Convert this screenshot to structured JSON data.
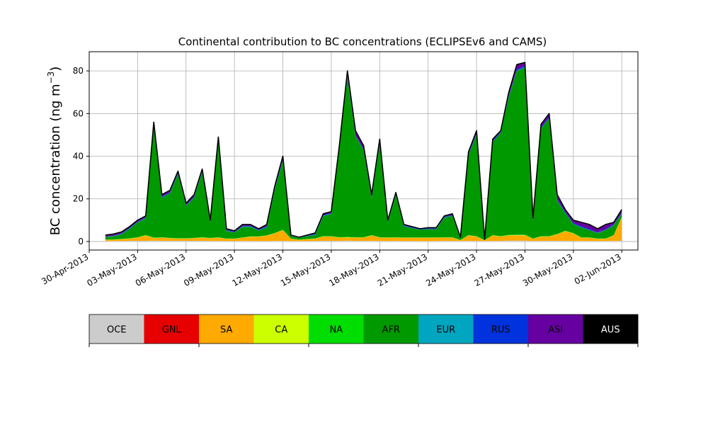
{
  "chart_data": {
    "type": "area",
    "stacked": true,
    "title": "Continental contribution to BC concentrations (ECLIPSEv6 and CAMS)",
    "ylabel_main": "BC concentration (ng m",
    "ylabel_sup": "−3",
    "ylabel_close": ")",
    "xlabel": "",
    "ylim": [
      -4,
      89
    ],
    "grid": true,
    "x_axis": {
      "type": "date",
      "min": "2013-04-30",
      "max": "2013-06-03",
      "tick_labels": [
        "30-Apr-2013",
        "03-May-2013",
        "06-May-2013",
        "09-May-2013",
        "12-May-2013",
        "15-May-2013",
        "18-May-2013",
        "21-May-2013",
        "24-May-2013",
        "27-May-2013",
        "30-May-2013",
        "02-Jun-2013"
      ],
      "tick_days": [
        0,
        3,
        6,
        9,
        12,
        15,
        18,
        21,
        24,
        27,
        30,
        33
      ]
    },
    "y_axis": {
      "ticks": [
        0,
        20,
        40,
        60,
        80
      ],
      "tick_labels": [
        "0",
        "20",
        "40",
        "60",
        "80"
      ]
    },
    "x": [
      "2013-05-01 00:00",
      "2013-05-01 12:00",
      "2013-05-02 00:00",
      "2013-05-02 12:00",
      "2013-05-03 00:00",
      "2013-05-03 12:00",
      "2013-05-04 00:00",
      "2013-05-04 12:00",
      "2013-05-05 00:00",
      "2013-05-05 12:00",
      "2013-05-06 00:00",
      "2013-05-06 12:00",
      "2013-05-07 00:00",
      "2013-05-07 12:00",
      "2013-05-08 00:00",
      "2013-05-08 12:00",
      "2013-05-09 00:00",
      "2013-05-09 12:00",
      "2013-05-10 00:00",
      "2013-05-10 12:00",
      "2013-05-11 00:00",
      "2013-05-11 12:00",
      "2013-05-12 00:00",
      "2013-05-12 12:00",
      "2013-05-13 00:00",
      "2013-05-13 12:00",
      "2013-05-14 00:00",
      "2013-05-14 12:00",
      "2013-05-15 00:00",
      "2013-05-15 12:00",
      "2013-05-16 00:00",
      "2013-05-16 12:00",
      "2013-05-17 00:00",
      "2013-05-17 12:00",
      "2013-05-18 00:00",
      "2013-05-18 12:00",
      "2013-05-19 00:00",
      "2013-05-19 12:00",
      "2013-05-20 00:00",
      "2013-05-20 12:00",
      "2013-05-21 00:00",
      "2013-05-21 12:00",
      "2013-05-22 00:00",
      "2013-05-22 12:00",
      "2013-05-23 00:00",
      "2013-05-23 12:00",
      "2013-05-24 00:00",
      "2013-05-24 12:00",
      "2013-05-25 00:00",
      "2013-05-25 12:00",
      "2013-05-26 00:00",
      "2013-05-26 12:00",
      "2013-05-27 00:00",
      "2013-05-27 12:00",
      "2013-05-28 00:00",
      "2013-05-28 12:00",
      "2013-05-29 00:00",
      "2013-05-29 12:00",
      "2013-05-30 00:00",
      "2013-05-30 12:00",
      "2013-05-31 00:00",
      "2013-05-31 12:00",
      "2013-06-01 00:00",
      "2013-06-01 12:00",
      "2013-06-02 00:00"
    ],
    "total": [
      3.0,
      3.5,
      4.5,
      7.0,
      10.0,
      12.0,
      56.0,
      22.0,
      24.0,
      33.0,
      18.0,
      22.0,
      34.0,
      10.0,
      49.0,
      6.0,
      5.0,
      8.0,
      8.0,
      6.0,
      8.0,
      26.0,
      40.0,
      3.0,
      2.0,
      3.0,
      4.0,
      13.0,
      14.0,
      45.0,
      80.0,
      52.0,
      45.0,
      22.0,
      48.0,
      10.0,
      23.0,
      8.0,
      7.0,
      6.0,
      6.5,
      6.5,
      12.0,
      13.0,
      2.0,
      42.0,
      52.0,
      1.0,
      48.0,
      52.0,
      70.0,
      83.0,
      84.0,
      11.0,
      55.0,
      60.0,
      22.0,
      15.0,
      10.0,
      9.0,
      8.0,
      6.0,
      8.0,
      9.0,
      15.0
    ],
    "series": [
      {
        "name": "OCE",
        "color": "#cccccc",
        "values": [
          0.2,
          0.2,
          0.2,
          0.3,
          0.3,
          0.3,
          0.4,
          0.3,
          0.3,
          0.3,
          0.3,
          0.3,
          0.3,
          0.2,
          0.3,
          0.2,
          0.2,
          0.2,
          0.2,
          0.2,
          0.2,
          0.3,
          0.3,
          0.2,
          0.2,
          0.2,
          0.2,
          0.3,
          0.3,
          0.3,
          0.4,
          0.3,
          0.3,
          0.3,
          0.3,
          0.2,
          0.3,
          0.2,
          0.2,
          0.2,
          0.2,
          0.2,
          0.3,
          0.3,
          0.2,
          0.3,
          0.3,
          0.2,
          0.3,
          0.3,
          0.4,
          0.4,
          0.4,
          0.2,
          0.3,
          0.3,
          0.3,
          0.3,
          0.2,
          0.2,
          0.2,
          0.2,
          0.2,
          0.2,
          0.3
        ]
      },
      {
        "name": "GNL",
        "color": "#e60000",
        "values": [
          0.0,
          0.0,
          0.0,
          0.0,
          0.0,
          0.0,
          0.0,
          0.0,
          0.0,
          0.0,
          0.0,
          0.0,
          0.0,
          0.0,
          0.0,
          0.0,
          0.0,
          0.0,
          0.0,
          0.0,
          0.0,
          0.0,
          0.0,
          0.0,
          0.0,
          0.0,
          0.0,
          0.0,
          0.0,
          0.0,
          0.0,
          0.0,
          0.0,
          0.0,
          0.0,
          0.0,
          0.0,
          0.0,
          0.0,
          0.0,
          0.0,
          0.0,
          0.0,
          0.0,
          0.0,
          0.0,
          0.0,
          0.0,
          0.0,
          0.0,
          0.0,
          0.0,
          0.0,
          0.0,
          0.0,
          0.0,
          0.0,
          0.0,
          0.0,
          0.0,
          0.0,
          0.0,
          0.0,
          0.0,
          0.0
        ]
      },
      {
        "name": "SA",
        "color": "#ffaa00",
        "values": [
          0.5,
          0.6,
          0.8,
          1.0,
          1.5,
          2.5,
          1.2,
          1.5,
          1.2,
          1.0,
          1.0,
          1.2,
          1.5,
          1.2,
          1.5,
          1.0,
          1.0,
          1.5,
          2.0,
          2.0,
          2.5,
          3.5,
          5.0,
          1.0,
          0.5,
          0.8,
          1.0,
          2.0,
          2.0,
          1.5,
          1.5,
          1.5,
          1.5,
          2.5,
          1.5,
          1.5,
          1.5,
          1.5,
          1.5,
          1.5,
          1.5,
          1.5,
          1.5,
          1.5,
          0.3,
          2.5,
          2.0,
          0.3,
          2.5,
          2.0,
          2.5,
          2.5,
          2.5,
          1.0,
          2.0,
          2.0,
          3.0,
          4.5,
          3.5,
          1.5,
          1.5,
          1.0,
          1.0,
          2.5,
          11.0
        ]
      },
      {
        "name": "CA",
        "color": "#ccff00",
        "values": [
          0.1,
          0.1,
          0.1,
          0.1,
          0.1,
          0.1,
          0.1,
          0.1,
          0.1,
          0.1,
          0.1,
          0.1,
          0.1,
          0.1,
          0.1,
          0.1,
          0.1,
          0.1,
          0.1,
          0.1,
          0.1,
          0.1,
          0.1,
          0.1,
          0.1,
          0.1,
          0.1,
          0.1,
          0.1,
          0.1,
          0.1,
          0.1,
          0.1,
          0.1,
          0.1,
          0.1,
          0.1,
          0.1,
          0.1,
          0.1,
          0.1,
          0.1,
          0.1,
          0.1,
          0.1,
          0.1,
          0.1,
          0.1,
          0.1,
          0.1,
          0.1,
          0.1,
          0.1,
          0.1,
          0.1,
          0.1,
          0.1,
          0.1,
          0.1,
          0.1,
          0.1,
          0.1,
          0.1,
          0.1,
          0.1
        ]
      },
      {
        "name": "NA",
        "color": "#00dd00",
        "values": [
          0.1,
          0.1,
          0.1,
          0.1,
          0.1,
          0.1,
          0.2,
          0.1,
          0.1,
          0.1,
          0.1,
          0.1,
          0.1,
          0.1,
          0.1,
          0.1,
          0.1,
          0.1,
          0.1,
          0.1,
          0.1,
          0.1,
          0.1,
          0.1,
          0.1,
          0.1,
          0.1,
          0.1,
          0.1,
          0.1,
          0.2,
          0.1,
          0.1,
          0.1,
          0.1,
          0.1,
          0.1,
          0.1,
          0.1,
          0.1,
          0.1,
          0.1,
          0.1,
          0.1,
          0.1,
          0.1,
          0.1,
          0.1,
          0.1,
          0.1,
          0.2,
          0.2,
          0.2,
          0.1,
          0.1,
          0.1,
          0.1,
          0.1,
          0.1,
          0.1,
          0.1,
          0.1,
          0.1,
          0.1,
          0.1
        ]
      },
      {
        "name": "AFR",
        "color": "#009900",
        "values": [
          1.2,
          1.4,
          2.2,
          4.4,
          6.9,
          7.8,
          52.7,
          18.4,
          20.7,
          29.4,
          14.8,
          18.5,
          30.1,
          6.8,
          45.4,
          3.5,
          2.8,
          4.9,
          4.4,
          2.7,
          3.8,
          20.1,
          32.4,
          1.1,
          0.8,
          1.3,
          1.6,
          9.3,
          10.4,
          42.0,
          74.3,
          47.2,
          41.0,
          17.0,
          44.0,
          7.1,
          19.8,
          5.4,
          4.4,
          3.7,
          3.9,
          3.8,
          9.2,
          10.0,
          0.8,
          37.3,
          47.6,
          0.1,
          43.7,
          48.5,
          64.9,
          76.8,
          78.3,
          8.5,
          50.4,
          55.0,
          15.6,
          8.2,
          4.2,
          4.6,
          3.4,
          2.5,
          3.9,
          4.6,
          1.5
        ]
      },
      {
        "name": "EUR",
        "color": "#00a6bf",
        "values": [
          0.1,
          0.1,
          0.1,
          0.1,
          0.1,
          0.1,
          0.2,
          0.1,
          0.1,
          0.1,
          0.1,
          0.1,
          0.1,
          0.1,
          0.1,
          0.1,
          0.1,
          0.1,
          0.1,
          0.1,
          0.1,
          0.1,
          0.1,
          0.1,
          0.1,
          0.1,
          0.1,
          0.1,
          0.1,
          0.1,
          0.2,
          0.1,
          0.1,
          0.1,
          0.1,
          0.1,
          0.1,
          0.1,
          0.1,
          0.1,
          0.1,
          0.1,
          0.1,
          0.1,
          0.1,
          0.1,
          0.1,
          0.1,
          0.1,
          0.1,
          0.2,
          0.2,
          0.2,
          0.1,
          0.1,
          0.1,
          0.1,
          0.1,
          0.1,
          0.1,
          0.1,
          0.1,
          0.1,
          0.1,
          0.1
        ]
      },
      {
        "name": "RUS",
        "color": "#0033dd",
        "values": [
          0.2,
          0.2,
          0.3,
          0.3,
          0.3,
          0.4,
          0.5,
          0.4,
          0.4,
          0.4,
          0.3,
          0.4,
          0.4,
          0.3,
          0.4,
          0.3,
          0.3,
          0.4,
          0.4,
          0.3,
          0.4,
          0.4,
          0.4,
          0.2,
          0.1,
          0.2,
          0.3,
          0.3,
          0.3,
          0.3,
          0.5,
          0.4,
          0.4,
          0.4,
          0.4,
          0.3,
          0.3,
          0.3,
          0.3,
          0.2,
          0.3,
          0.3,
          0.3,
          0.4,
          0.2,
          0.4,
          0.4,
          0.1,
          0.4,
          0.4,
          0.5,
          0.6,
          0.6,
          0.3,
          0.5,
          0.5,
          0.4,
          0.4,
          0.4,
          0.4,
          0.4,
          0.3,
          0.4,
          0.4,
          0.3
        ]
      },
      {
        "name": "ASI",
        "color": "#6600a0",
        "values": [
          0.6,
          0.7,
          0.7,
          0.6,
          0.6,
          0.6,
          1.5,
          0.9,
          0.9,
          0.9,
          0.8,
          0.9,
          0.9,
          0.7,
          1.0,
          0.6,
          0.4,
          0.6,
          0.6,
          0.5,
          0.8,
          1.3,
          1.5,
          0.2,
          0.1,
          0.2,
          0.5,
          0.7,
          0.6,
          0.6,
          2.5,
          2.1,
          1.6,
          1.6,
          1.6,
          0.6,
          0.8,
          0.4,
          0.3,
          0.2,
          0.3,
          0.4,
          0.4,
          0.5,
          0.1,
          1.1,
          1.3,
          0.1,
          0.8,
          0.5,
          1.5,
          2.3,
          1.6,
          0.6,
          1.4,
          1.6,
          2.3,
          1.2,
          1.3,
          1.9,
          2.2,
          1.7,
          2.1,
          0.9,
          1.5
        ]
      },
      {
        "name": "AUS",
        "color": "#000000",
        "values": [
          0,
          0,
          0,
          0,
          0,
          0,
          0,
          0,
          0,
          0,
          0,
          0,
          0,
          0,
          0,
          0,
          0,
          0,
          0,
          0,
          0,
          0,
          0,
          0,
          0,
          0,
          0,
          0,
          0,
          0,
          0,
          0,
          0,
          0,
          0,
          0,
          0,
          0,
          0,
          0,
          0,
          0,
          0,
          0,
          0,
          0,
          0,
          0,
          0,
          0,
          0,
          0,
          0,
          0,
          0,
          0,
          0,
          0,
          0,
          0,
          0,
          0,
          0,
          0,
          0
        ]
      }
    ],
    "legend": {
      "placement": "colorbar-below",
      "labels": [
        "OCE",
        "GNL",
        "SA",
        "CA",
        "NA",
        "AFR",
        "EUR",
        "RUS",
        "ASI",
        "AUS"
      ],
      "text_colors": [
        "#000000",
        "#000000",
        "#000000",
        "#000000",
        "#000000",
        "#000000",
        "#000000",
        "#000000",
        "#000000",
        "#ffffff"
      ]
    }
  }
}
